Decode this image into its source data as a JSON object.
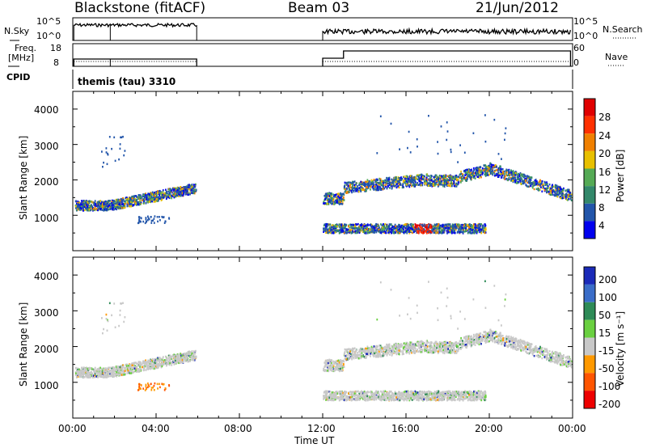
{
  "header": {
    "station": "Blackstone (fitACF)",
    "beam": "Beam 03",
    "date": "21/Jun/2012"
  },
  "aux_panels": {
    "nsky_label": "N.Sky",
    "nsky_ticks": [
      "10^5",
      "10^0"
    ],
    "nsearch_label": "N.Search",
    "nsearch_ticks": [
      "10^5",
      "10^0"
    ],
    "freq_label_1": "Freq.",
    "freq_label_2": "[MHz]",
    "freq_ticks": [
      "18",
      "8"
    ],
    "nave_label": "Nave",
    "nave_ticks": [
      "60",
      "0"
    ],
    "cpid_label": "CPID",
    "cpid_value": "themis (tau) 3310"
  },
  "chart_data": [
    {
      "type": "heatmap",
      "name": "power",
      "ylabel": "Slant Range [km]",
      "ylim": [
        0,
        4500
      ],
      "yticks": [
        "1000",
        "2000",
        "3000",
        "4000"
      ],
      "xlim": [
        "00:00",
        "24:00"
      ],
      "colorbar_label": "Power [dB]",
      "colorbar_ticks": [
        "4",
        "8",
        "12",
        "16",
        "20",
        "24",
        "28"
      ],
      "colors": [
        "#0000ee",
        "#2255aa",
        "#33886a",
        "#55aa55",
        "#e8c000",
        "#f08000",
        "#ff3000",
        "#e00000"
      ],
      "echo_bands": [
        {
          "t_start": 0.0,
          "t_end": 6.0,
          "r_start": 1250,
          "r_end": 1850
        },
        {
          "t_start": 12.0,
          "t_end": 24.0,
          "r_start": 1300,
          "r_end": 2400
        },
        {
          "t_start": 12.0,
          "t_end": 19.5,
          "r_start": 500,
          "r_end": 800
        }
      ]
    },
    {
      "type": "heatmap",
      "name": "velocity",
      "ylabel": "Slant Range [km]",
      "ylim": [
        0,
        4500
      ],
      "yticks": [
        "1000",
        "2000",
        "3000",
        "4000"
      ],
      "xlim": [
        "00:00",
        "24:00"
      ],
      "colorbar_label": "Velocity [m s⁻¹]",
      "colorbar_ticks": [
        "200",
        "100",
        "50",
        "15",
        "-15",
        "-50",
        "-100",
        "-200"
      ],
      "colors": [
        "#1a2ab8",
        "#3a6dc8",
        "#2e8b57",
        "#6ad040",
        "#c8c8c8",
        "#ff9900",
        "#ff5500",
        "#ee0000"
      ]
    }
  ],
  "xaxis": {
    "label": "Time UT",
    "ticks": [
      "00:00",
      "04:00",
      "08:00",
      "12:00",
      "16:00",
      "20:00",
      "00:00"
    ]
  }
}
